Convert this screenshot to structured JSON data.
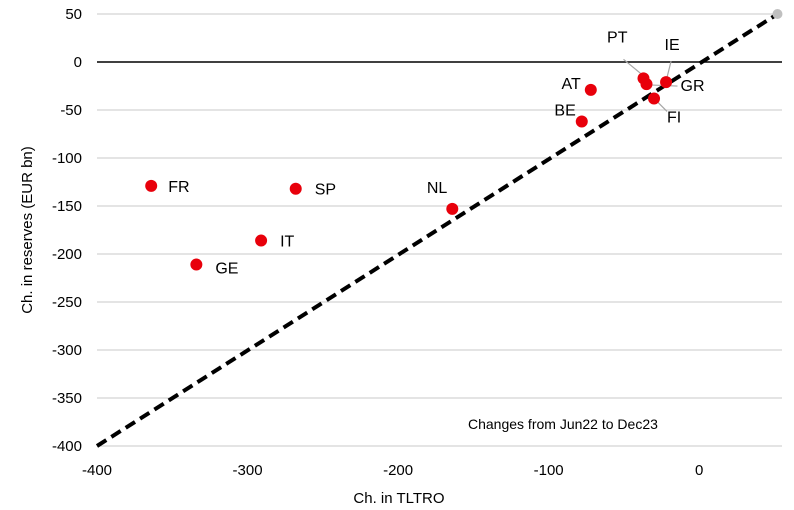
{
  "chart_data": {
    "type": "scatter",
    "title": "",
    "xlabel": "Ch. in TLTRO",
    "ylabel": "Ch. in reserves (EUR bn)",
    "xlim": [
      -400,
      55
    ],
    "ylim": [
      -400,
      50
    ],
    "x_ticks": [
      -400,
      -300,
      -200,
      -100,
      0
    ],
    "y_ticks": [
      50,
      0,
      -50,
      -100,
      -150,
      -200,
      -250,
      -300,
      -350,
      -400
    ],
    "grid": "horizontal",
    "annotation": "Changes from Jun22 to Dec23",
    "points": [
      {
        "label": "FR",
        "x": -364,
        "y": -129
      },
      {
        "label": "SP",
        "x": -268,
        "y": -132
      },
      {
        "label": "NL",
        "x": -164,
        "y": -153
      },
      {
        "label": "IT",
        "x": -291,
        "y": -186
      },
      {
        "label": "GE",
        "x": -334,
        "y": -211
      },
      {
        "label": "AT",
        "x": -72,
        "y": -29
      },
      {
        "label": "BE",
        "x": -78,
        "y": -62
      },
      {
        "label": "PT",
        "x": -37,
        "y": -17
      },
      {
        "label": "IE",
        "x": -22,
        "y": -21
      },
      {
        "label": "GR",
        "x": -35,
        "y": -23
      },
      {
        "label": "FI",
        "x": -30,
        "y": -38
      }
    ],
    "reference_line": {
      "style": "dashed",
      "from": [
        -400,
        -400
      ],
      "to": [
        52,
        50
      ]
    },
    "reference_end_point": {
      "x": 52,
      "y": 50,
      "color": "#c0c0c0"
    },
    "colors": {
      "points": "#e8000b",
      "reference_line": "#000000",
      "grid": "#c8c8c8",
      "zero_line": "#000000"
    }
  }
}
